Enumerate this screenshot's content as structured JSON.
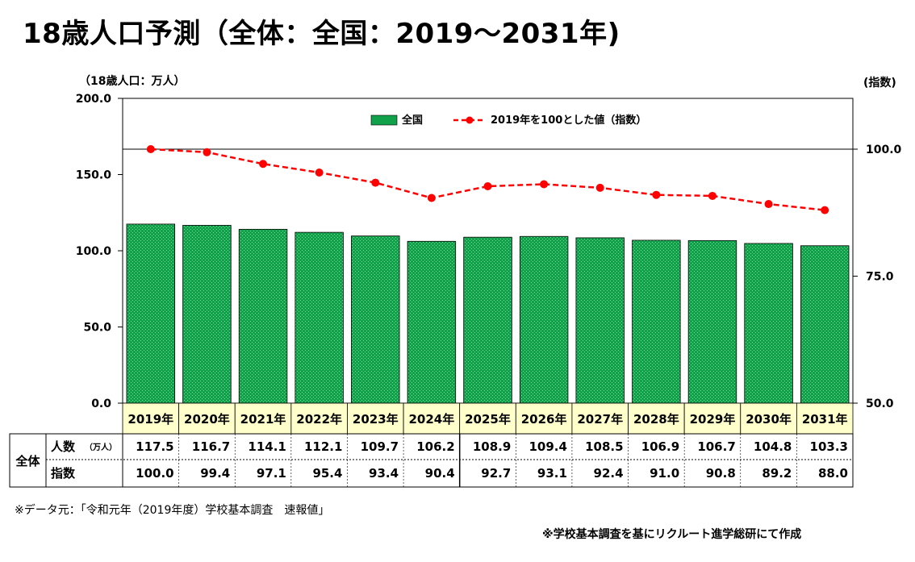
{
  "title": "18歳人口予測（全体：全国：2019～2031年)",
  "y_left_unit": "（18歳人口：万人）",
  "y_right_unit": "(指数)",
  "legend": {
    "bar_label": "全国",
    "line_label": "2019年を100とした値（指数）"
  },
  "table": {
    "group_label": "全体",
    "row1_label": "人数",
    "row1_unit": "（万人）",
    "row2_label": "指数"
  },
  "footnote_source": "※データ元：「令和元年（2019年度）学校基本調査　速報値」",
  "footnote_credit": "※学校基本調査を基にリクルート進学総研にて作成",
  "colors": {
    "bar": "#11a14a",
    "line": "#ff0000",
    "year_bg": "#ffffcc"
  },
  "chart_data": {
    "type": "bar",
    "categories": [
      "2019年",
      "2020年",
      "2021年",
      "2022年",
      "2023年",
      "2024年",
      "2025年",
      "2026年",
      "2027年",
      "2028年",
      "2029年",
      "2030年",
      "2031年"
    ],
    "series": [
      {
        "name": "全国",
        "type": "bar",
        "axis": "left",
        "values": [
          117.5,
          116.7,
          114.1,
          112.1,
          109.7,
          106.2,
          108.9,
          109.4,
          108.5,
          106.9,
          106.7,
          104.8,
          103.3
        ]
      },
      {
        "name": "2019年を100とした値（指数）",
        "type": "line",
        "axis": "right",
        "values": [
          100.0,
          99.4,
          97.1,
          95.4,
          93.4,
          90.4,
          92.7,
          93.1,
          92.4,
          91.0,
          90.8,
          89.2,
          88.0
        ]
      }
    ],
    "y_left": {
      "ylim": [
        0,
        200
      ],
      "ticks": [
        "0.0",
        "50.0",
        "100.0",
        "150.0",
        "200.0"
      ],
      "tick_values": [
        0,
        50,
        100,
        150,
        200
      ]
    },
    "y_right": {
      "ylim": [
        50,
        110
      ],
      "ticks": [
        "50.0",
        "75.0",
        "100.0"
      ],
      "tick_values": [
        50,
        75,
        100
      ]
    },
    "row1_display": [
      "117.5",
      "116.7",
      "114.1",
      "112.1",
      "109.7",
      "106.2",
      "108.9",
      "109.4",
      "108.5",
      "106.9",
      "106.7",
      "104.8",
      "103.3"
    ],
    "row2_display": [
      "100.0",
      "99.4",
      "97.1",
      "95.4",
      "93.4",
      "90.4",
      "92.7",
      "93.1",
      "92.4",
      "91.0",
      "90.8",
      "89.2",
      "88.0"
    ],
    "legend_position": "top-center"
  }
}
